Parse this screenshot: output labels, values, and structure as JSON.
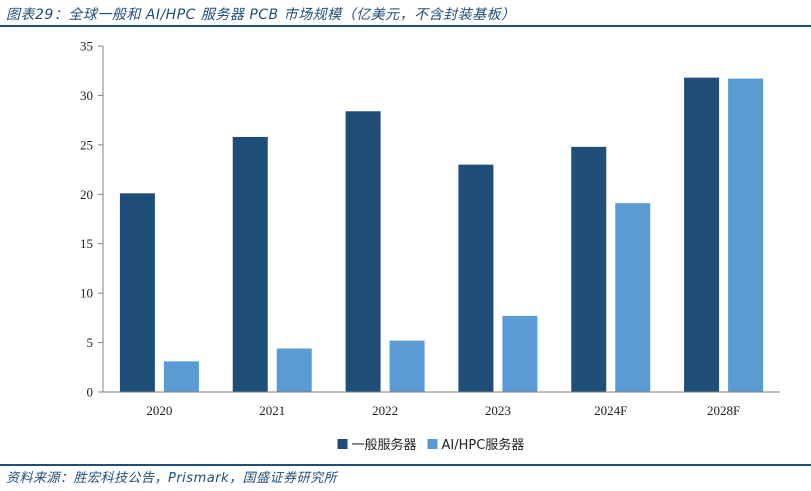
{
  "header": {
    "title": "图表29：全球一般和 AI/HPC 服务器 PCB 市场规模（亿美元，不含封装基板）"
  },
  "footer": {
    "source": "资料来源：胜宏科技公告，Prismark，国盛证券研究所"
  },
  "colors": {
    "series1": "#1f4e79",
    "series2": "#5b9bd5",
    "axis": "#808080",
    "text": "#222222",
    "accent": "#1f4e79"
  },
  "chart_data": {
    "type": "bar",
    "categories": [
      "2020",
      "2021",
      "2022",
      "2023",
      "2024F",
      "2028F"
    ],
    "series": [
      {
        "name": "一般服务器",
        "values": [
          20.1,
          25.8,
          28.4,
          23.0,
          24.8,
          31.8
        ]
      },
      {
        "name": "AI/HPC服务器",
        "values": [
          3.1,
          4.4,
          5.2,
          7.7,
          19.1,
          31.7
        ]
      }
    ],
    "yticks": [
      0,
      5,
      10,
      15,
      20,
      25,
      30,
      35
    ],
    "ylim": [
      0,
      35
    ],
    "grid": false,
    "legend_position": "bottom-center"
  }
}
